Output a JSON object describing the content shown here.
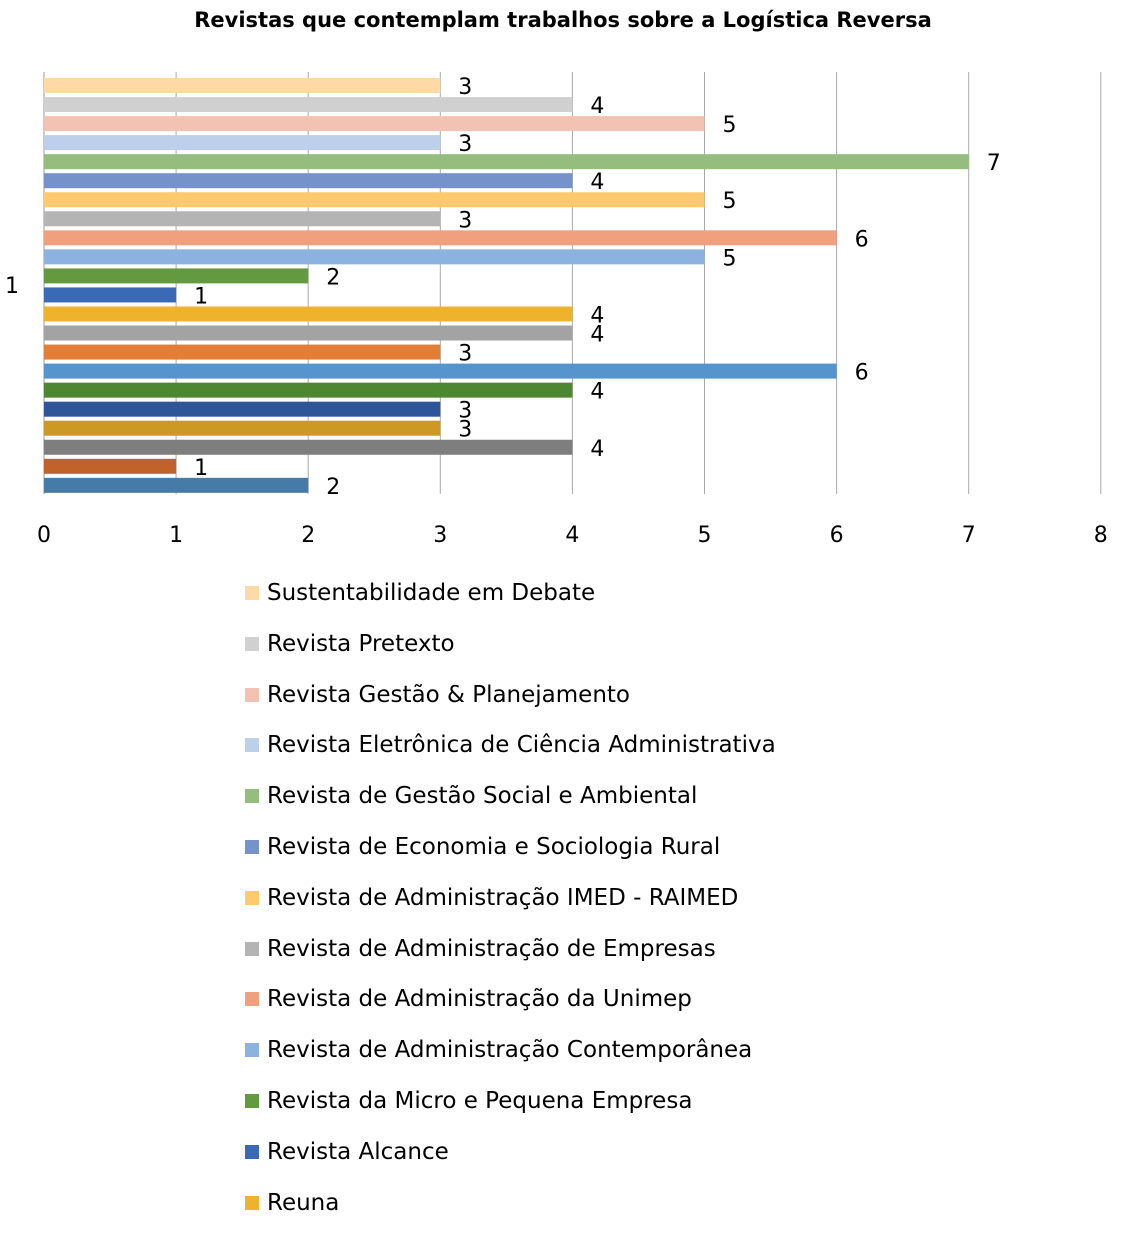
{
  "chart_data": {
    "type": "bar",
    "orientation": "horizontal",
    "title": "Revistas que contemplam trabalhos sobre a Logística Reversa",
    "xlabel": "",
    "ylabel": "",
    "categories": [
      "1"
    ],
    "xlim": [
      0,
      8
    ],
    "xticks": [
      "0",
      "1",
      "2",
      "3",
      "4",
      "5",
      "6",
      "7",
      "8"
    ],
    "grid": true,
    "legend_position": "bottom",
    "series": [
      {
        "name": "Sustentabilidade em Debate",
        "values": [
          3
        ],
        "color": "#FFD9A6"
      },
      {
        "name": "Revista Pretexto",
        "values": [
          4
        ],
        "color": "#D0D0D0"
      },
      {
        "name": "Revista Gestão & Planejamento",
        "values": [
          5
        ],
        "color": "#F4C2B2"
      },
      {
        "name": "Revista Eletrônica de Ciência Administrativa",
        "values": [
          3
        ],
        "color": "#BCD0EC"
      },
      {
        "name": "Revista de Gestão Social e Ambiental",
        "values": [
          7
        ],
        "color": "#94BD7E"
      },
      {
        "name": "Revista de Economia e Sociologia Rural",
        "values": [
          4
        ],
        "color": "#7692CA"
      },
      {
        "name": "Revista de Administração IMED - RAIMED",
        "values": [
          5
        ],
        "color": "#FFC96E"
      },
      {
        "name": "Revista de Administração de Empresas",
        "values": [
          3
        ],
        "color": "#B4B4B4"
      },
      {
        "name": "Revista de Administração da Unimep",
        "values": [
          6
        ],
        "color": "#F0A07E"
      },
      {
        "name": "Revista de Administração Contemporânea",
        "values": [
          5
        ],
        "color": "#8CB3DF"
      },
      {
        "name": "Revista da Micro e Pequena Empresa",
        "values": [
          2
        ],
        "color": "#63993F"
      },
      {
        "name": "Revista Alcance",
        "values": [
          1
        ],
        "color": "#3A6AB6"
      },
      {
        "name": "Reuna",
        "values": [
          4
        ],
        "color": "#EFB22C"
      },
      {
        "name": "",
        "values": [
          4
        ],
        "color": "#A3A3A3"
      },
      {
        "name": "",
        "values": [
          3
        ],
        "color": "#E27E36"
      },
      {
        "name": "",
        "values": [
          6
        ],
        "color": "#5594CC"
      },
      {
        "name": "",
        "values": [
          4
        ],
        "color": "#4D8731"
      },
      {
        "name": "",
        "values": [
          3
        ],
        "color": "#2E5597"
      },
      {
        "name": "",
        "values": [
          3
        ],
        "color": "#CC9A24"
      },
      {
        "name": "",
        "values": [
          4
        ],
        "color": "#7E7E7E"
      },
      {
        "name": "",
        "values": [
          1
        ],
        "color": "#C0622A"
      },
      {
        "name": "",
        "values": [
          2
        ],
        "color": "#467BA8"
      }
    ]
  }
}
